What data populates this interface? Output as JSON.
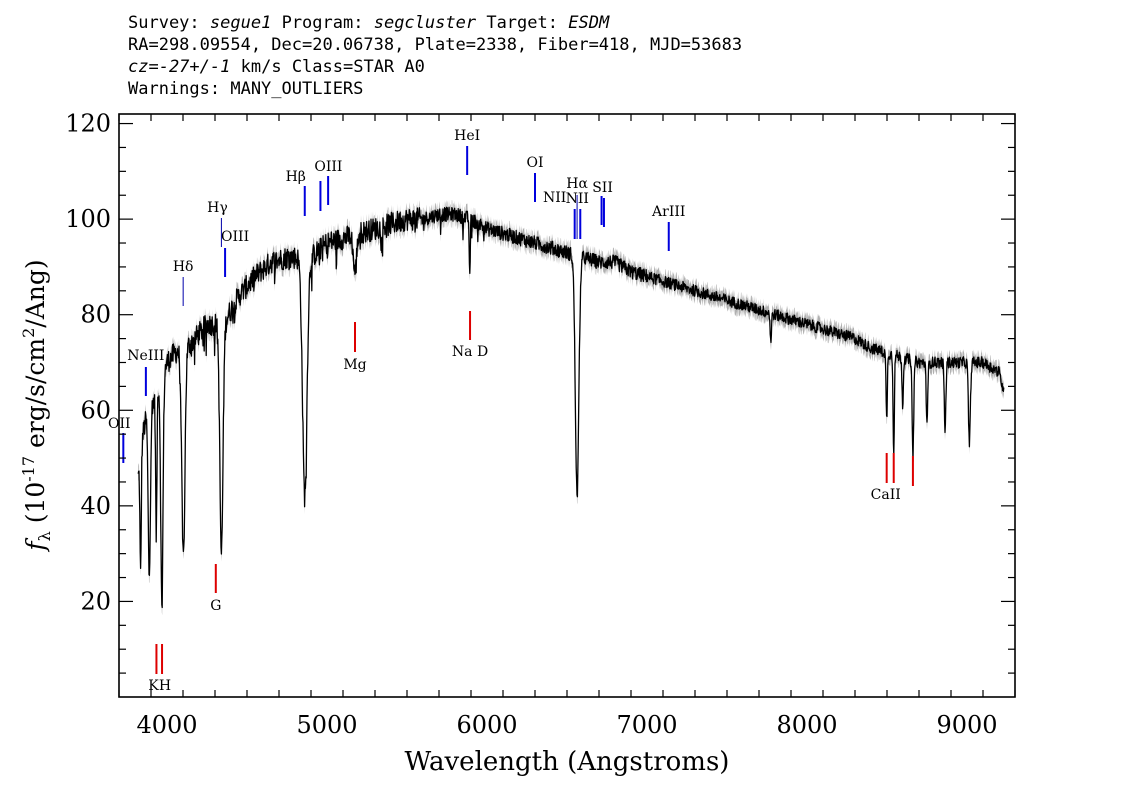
{
  "header": {
    "line1": {
      "survey_label": "Survey:",
      "survey_value": "segue1",
      "program_label": "Program:",
      "program_value": "segcluster",
      "target_label": "Target:",
      "target_value": "ESDM"
    },
    "line2": "RA=298.09554, Dec=20.06738, Plate=2338, Fiber=418, MJD=53683",
    "line3": {
      "cz_value": "cz=-27+/-1",
      "cz_unit": "km/s",
      "class_text": "Class=STAR A0"
    },
    "line4": "Warnings: MANY_OUTLIERS"
  },
  "chart_data": {
    "type": "line",
    "xlabel": "Wavelength (Angstroms)",
    "ylabel": "f_λ (10^-17 erg/s/cm^2/Ang)",
    "xlim": [
      3700,
      9300
    ],
    "ylim": [
      0,
      122
    ],
    "x_ticks": [
      4000,
      5000,
      6000,
      7000,
      8000,
      9000
    ],
    "y_ticks": [
      20,
      40,
      60,
      80,
      100,
      120
    ],
    "grid": false,
    "colors": {
      "spectrum": "#000000",
      "error_band": "#b0b0b0",
      "emission": "#0000dd",
      "absorption": "#dd0000"
    },
    "continuum": [
      [
        3820,
        46
      ],
      [
        3850,
        55
      ],
      [
        3880,
        60
      ],
      [
        3920,
        62
      ],
      [
        3960,
        66
      ],
      [
        4000,
        70
      ],
      [
        4050,
        72
      ],
      [
        4150,
        74
      ],
      [
        4250,
        78
      ],
      [
        4350,
        78
      ],
      [
        4450,
        84
      ],
      [
        4550,
        88
      ],
      [
        4650,
        91
      ],
      [
        4750,
        92
      ],
      [
        4900,
        92
      ],
      [
        5000,
        95
      ],
      [
        5100,
        96
      ],
      [
        5200,
        97
      ],
      [
        5300,
        98
      ],
      [
        5400,
        99
      ],
      [
        5500,
        100
      ],
      [
        5600,
        100
      ],
      [
        5700,
        101
      ],
      [
        5800,
        101
      ],
      [
        5900,
        100
      ],
      [
        6000,
        98
      ],
      [
        6100,
        97
      ],
      [
        6200,
        96
      ],
      [
        6300,
        95
      ],
      [
        6400,
        94
      ],
      [
        6500,
        93
      ],
      [
        6600,
        92
      ],
      [
        6700,
        91
      ],
      [
        6800,
        91
      ],
      [
        6900,
        89
      ],
      [
        7000,
        88
      ],
      [
        7100,
        87
      ],
      [
        7200,
        86
      ],
      [
        7300,
        85
      ],
      [
        7400,
        84
      ],
      [
        7500,
        83
      ],
      [
        7600,
        82
      ],
      [
        7700,
        81
      ],
      [
        7800,
        80
      ],
      [
        7900,
        79
      ],
      [
        8000,
        78
      ],
      [
        8100,
        77
      ],
      [
        8200,
        76
      ],
      [
        8300,
        75
      ],
      [
        8400,
        73
      ],
      [
        8500,
        72
      ],
      [
        8600,
        71
      ],
      [
        8700,
        70
      ],
      [
        8800,
        70
      ],
      [
        8900,
        70
      ],
      [
        9000,
        70
      ],
      [
        9100,
        70
      ],
      [
        9200,
        68
      ],
      [
        9230,
        64
      ]
    ],
    "absorption_features": [
      [
        3835,
        25,
        4
      ],
      [
        3889,
        35,
        7
      ],
      [
        3933,
        30,
        4
      ],
      [
        3968,
        48,
        7
      ],
      [
        4102,
        44,
        10
      ],
      [
        4340,
        48,
        10
      ],
      [
        4861,
        50,
        14
      ],
      [
        5175,
        8,
        10
      ],
      [
        5892,
        13,
        3
      ],
      [
        6563,
        50,
        11
      ],
      [
        7774,
        6,
        4
      ],
      [
        8498,
        14,
        4
      ],
      [
        8542,
        20,
        4
      ],
      [
        8598,
        10,
        4
      ],
      [
        8662,
        20,
        5
      ],
      [
        8750,
        12,
        5
      ],
      [
        8863,
        14,
        5
      ],
      [
        9015,
        17,
        6
      ]
    ],
    "line_markers": [
      {
        "label": "OII",
        "x": 3727,
        "type": "emission"
      },
      {
        "label": "NeIII",
        "x": 3868,
        "type": "emission"
      },
      {
        "label": "Hδ",
        "x": 4101,
        "type": "emission"
      },
      {
        "label": "Hγ",
        "x": 4340,
        "type": "emission"
      },
      {
        "label": "OIII",
        "x": 4363,
        "type": "emission"
      },
      {
        "label": "Hβ",
        "x": 4861,
        "type": "emission"
      },
      {
        "label": "OIII",
        "x": 4959,
        "type": "emission"
      },
      {
        "label": "OIII",
        "x": 5007,
        "type": "emission"
      },
      {
        "label": "HeI",
        "x": 5876,
        "type": "emission"
      },
      {
        "label": "OI",
        "x": 6300,
        "type": "emission"
      },
      {
        "label": "NII",
        "x": 6548,
        "type": "emission"
      },
      {
        "label": "Hα",
        "x": 6563,
        "type": "emission"
      },
      {
        "label": "NII",
        "x": 6583,
        "type": "emission"
      },
      {
        "label": "SII",
        "x": 6716,
        "type": "emission"
      },
      {
        "label": "SII",
        "x": 6731,
        "type": "emission"
      },
      {
        "label": "ArIII",
        "x": 7136,
        "type": "emission"
      },
      {
        "label": "K",
        "x": 3934,
        "type": "absorption"
      },
      {
        "label": "H",
        "x": 3969,
        "type": "absorption"
      },
      {
        "label": "G",
        "x": 4305,
        "type": "absorption"
      },
      {
        "label": "Mg",
        "x": 5175,
        "type": "absorption"
      },
      {
        "label": "Na D",
        "x": 5894,
        "type": "absorption"
      },
      {
        "label": "CaII",
        "x": 8498,
        "type": "absorption"
      },
      {
        "label": "CaII",
        "x": 8542,
        "type": "absorption"
      },
      {
        "label": "CaII",
        "x": 8662,
        "type": "absorption"
      }
    ]
  }
}
